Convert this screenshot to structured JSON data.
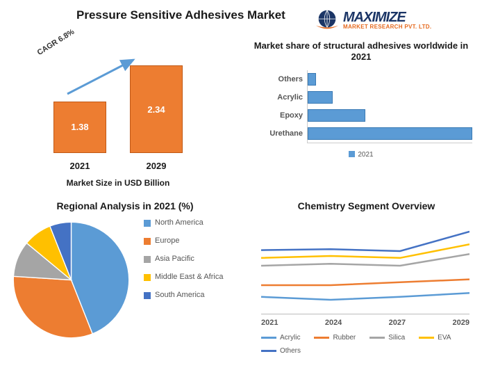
{
  "main_title": "Pressure Sensitive Adhesives Market",
  "logo": {
    "brand_big": "MAXIMIZE",
    "brand_small": "MARKET RESEARCH PVT. LTD.",
    "globe_color": "#1b3566",
    "swoosh_color": "#e66a1f"
  },
  "bar_chart": {
    "type": "bar",
    "cagr_label": "CAGR 6.8%",
    "subtitle": "Market Size in USD Billion",
    "categories": [
      "2021",
      "2029"
    ],
    "values": [
      1.38,
      2.34
    ],
    "value_labels": [
      "1.38",
      "2.34"
    ],
    "bar_color": "#ed7d31",
    "bar_border": "#c05815",
    "value_color": "#ffffff",
    "arrow_color": "#5b9bd5",
    "ylim": [
      0,
      2.6
    ],
    "title_fontsize": 17,
    "label_fontsize": 13
  },
  "hbar_chart": {
    "type": "bar_horizontal",
    "title": "Market share of structural adhesives worldwide in 2021",
    "categories": [
      "Others",
      "Acrylic",
      "Epoxy",
      "Urethane"
    ],
    "values": [
      5,
      15,
      35,
      100
    ],
    "xlim": [
      0,
      100
    ],
    "bar_color": "#5b9bd5",
    "bar_border": "#3a7ab4",
    "legend_label": "2021",
    "title_fontsize": 13,
    "label_fontsize": 11
  },
  "pie_chart": {
    "type": "pie",
    "title": "Regional Analysis in 2021 (%)",
    "slices": [
      {
        "label": "North America",
        "value": 44,
        "color": "#5b9bd5"
      },
      {
        "label": "Europe",
        "value": 32,
        "color": "#ed7d31"
      },
      {
        "label": "Asia Pacific",
        "value": 10,
        "color": "#a5a5a5"
      },
      {
        "label": "Middle East & Africa",
        "value": 8,
        "color": "#ffc000"
      },
      {
        "label": "South America",
        "value": 6,
        "color": "#4472c4"
      }
    ],
    "separator_color": "#ffffff",
    "title_fontsize": 14,
    "label_fontsize": 11
  },
  "line_chart": {
    "type": "line",
    "title": "Chemistry Segment Overview",
    "x_categories": [
      "2021",
      "2024",
      "2027",
      "2029"
    ],
    "ylim": [
      0,
      100
    ],
    "series": [
      {
        "name": "Acrylic",
        "color": "#5b9bd5",
        "values": [
          18,
          15,
          18,
          22
        ]
      },
      {
        "name": "Rubber",
        "color": "#ed7d31",
        "values": [
          30,
          30,
          33,
          36
        ]
      },
      {
        "name": "Silica",
        "color": "#a5a5a5",
        "values": [
          50,
          52,
          50,
          62
        ]
      },
      {
        "name": "EVA",
        "color": "#ffc000",
        "values": [
          58,
          60,
          58,
          72
        ]
      },
      {
        "name": "Others",
        "color": "#4472c4",
        "values": [
          66,
          67,
          65,
          85
        ]
      }
    ],
    "line_width": 2.5,
    "title_fontsize": 14,
    "label_fontsize": 11
  }
}
